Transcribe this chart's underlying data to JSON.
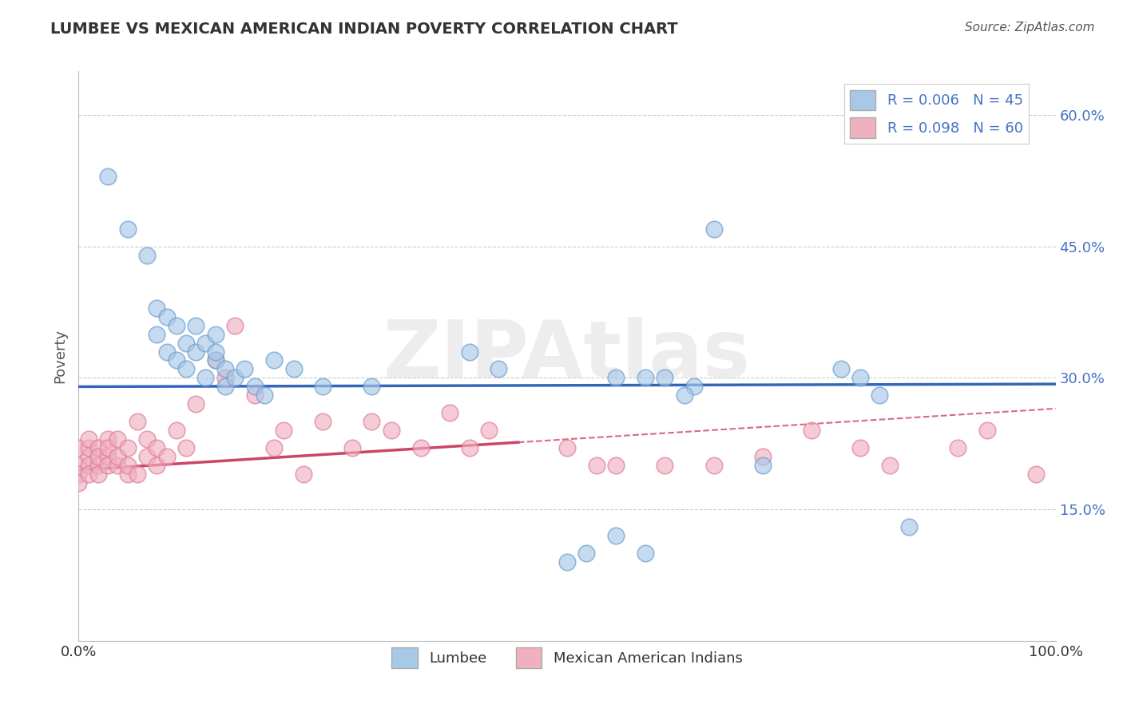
{
  "title": "LUMBEE VS MEXICAN AMERICAN INDIAN POVERTY CORRELATION CHART",
  "source_text": "Source: ZipAtlas.com",
  "ylabel": "Poverty",
  "xlim": [
    0.0,
    100.0
  ],
  "ylim": [
    0.0,
    65.0
  ],
  "lumbee_color": "#a8c8e8",
  "mexican_color": "#f0b0c0",
  "lumbee_edge": "#6699cc",
  "mexican_edge": "#dd7799",
  "trend_lumbee_color": "#3366bb",
  "trend_mexican_color": "#cc4466",
  "R_lumbee": 0.006,
  "N_lumbee": 45,
  "R_mexican": 0.098,
  "N_mexican": 60,
  "legend_label_lumbee": "Lumbee",
  "legend_label_mexican": "Mexican American Indians",
  "watermark": "ZIPAtlas",
  "grid_color": "#cccccc",
  "lumbee_trend_y0": 29.0,
  "lumbee_trend_y1": 29.3,
  "mexican_trend_y0": 19.5,
  "mexican_trend_y1": 26.5,
  "mexican_solid_end_x": 45.0,
  "lumbee_x": [
    3,
    5,
    7,
    8,
    8,
    9,
    9,
    10,
    10,
    11,
    11,
    12,
    12,
    13,
    13,
    14,
    14,
    14,
    15,
    15,
    16,
    17,
    18,
    19,
    20,
    22,
    25,
    30,
    40,
    43,
    50,
    52,
    55,
    58,
    60,
    63,
    65,
    70,
    78,
    80,
    82,
    85,
    55,
    58,
    62
  ],
  "lumbee_y": [
    53,
    47,
    44,
    38,
    35,
    37,
    33,
    36,
    32,
    34,
    31,
    36,
    33,
    34,
    30,
    32,
    33,
    35,
    31,
    29,
    30,
    31,
    29,
    28,
    32,
    31,
    29,
    29,
    33,
    31,
    9,
    10,
    30,
    30,
    30,
    29,
    47,
    20,
    31,
    30,
    28,
    13,
    12,
    10,
    28
  ],
  "mexican_x": [
    0,
    0,
    0,
    0,
    1,
    1,
    1,
    1,
    1,
    2,
    2,
    2,
    2,
    3,
    3,
    3,
    3,
    4,
    4,
    4,
    5,
    5,
    5,
    6,
    6,
    7,
    7,
    8,
    8,
    9,
    10,
    11,
    12,
    14,
    15,
    16,
    18,
    20,
    21,
    23,
    25,
    28,
    30,
    32,
    35,
    38,
    40,
    42,
    50,
    53,
    55,
    60,
    65,
    70,
    75,
    80,
    83,
    90,
    93,
    98
  ],
  "mexican_y": [
    20,
    22,
    19,
    18,
    21,
    22,
    20,
    19,
    23,
    20,
    22,
    21,
    19,
    21,
    23,
    20,
    22,
    20,
    23,
    21,
    19,
    22,
    20,
    19,
    25,
    21,
    23,
    20,
    22,
    21,
    24,
    22,
    27,
    32,
    30,
    36,
    28,
    22,
    24,
    19,
    25,
    22,
    25,
    24,
    22,
    26,
    22,
    24,
    22,
    20,
    20,
    20,
    20,
    21,
    24,
    22,
    20,
    22,
    24,
    19
  ]
}
